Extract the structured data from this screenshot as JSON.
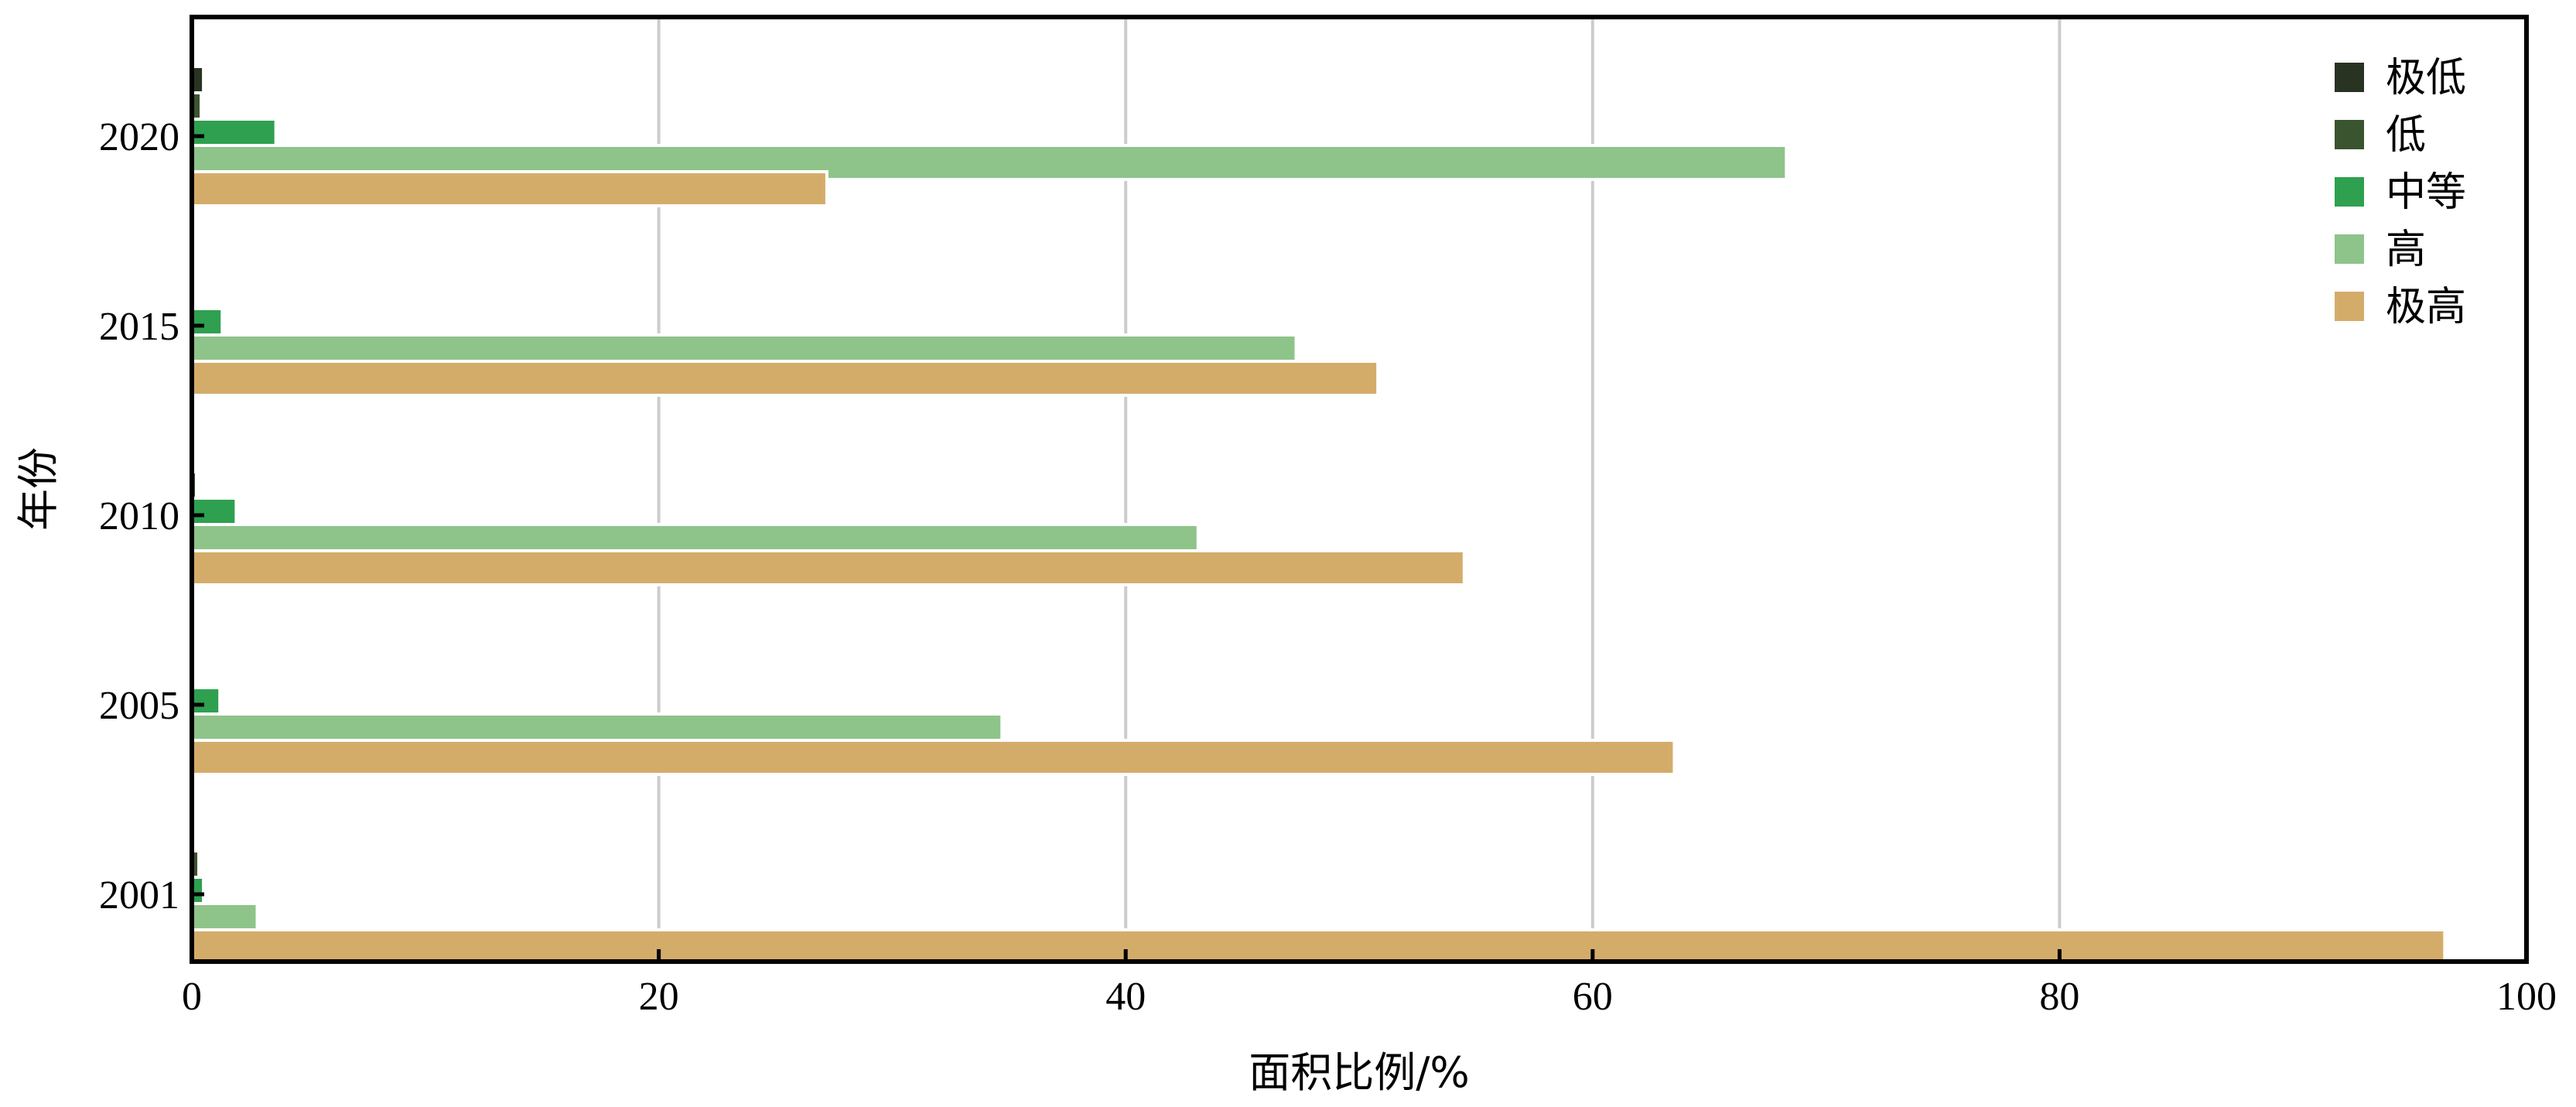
{
  "chart_data": {
    "type": "bar",
    "orientation": "horizontal",
    "categories": [
      "2001",
      "2005",
      "2010",
      "2015",
      "2020"
    ],
    "series": [
      {
        "name": "极低",
        "color": "#283322",
        "values": [
          0.1,
          0.1,
          0.1,
          0.1,
          0.5
        ]
      },
      {
        "name": "低",
        "color": "#3b5430",
        "values": [
          0.3,
          0.1,
          0.2,
          0.1,
          0.4
        ]
      },
      {
        "name": "中等",
        "color": "#2ea050",
        "values": [
          0.5,
          1.2,
          1.9,
          1.3,
          3.6
        ]
      },
      {
        "name": "高",
        "color": "#8ec48a",
        "values": [
          2.8,
          34.7,
          43.1,
          47.3,
          68.3
        ]
      },
      {
        "name": "极高",
        "color": "#d4ac6a",
        "values": [
          96.5,
          63.5,
          54.5,
          50.8,
          27.2
        ]
      }
    ],
    "xlabel": "面积比例/%",
    "ylabel": "年份",
    "xlim": [
      0,
      100
    ],
    "xticks": [
      "0",
      "20",
      "40",
      "60",
      "80",
      "100"
    ],
    "grid": "vertical",
    "legend_position": "top-right"
  }
}
